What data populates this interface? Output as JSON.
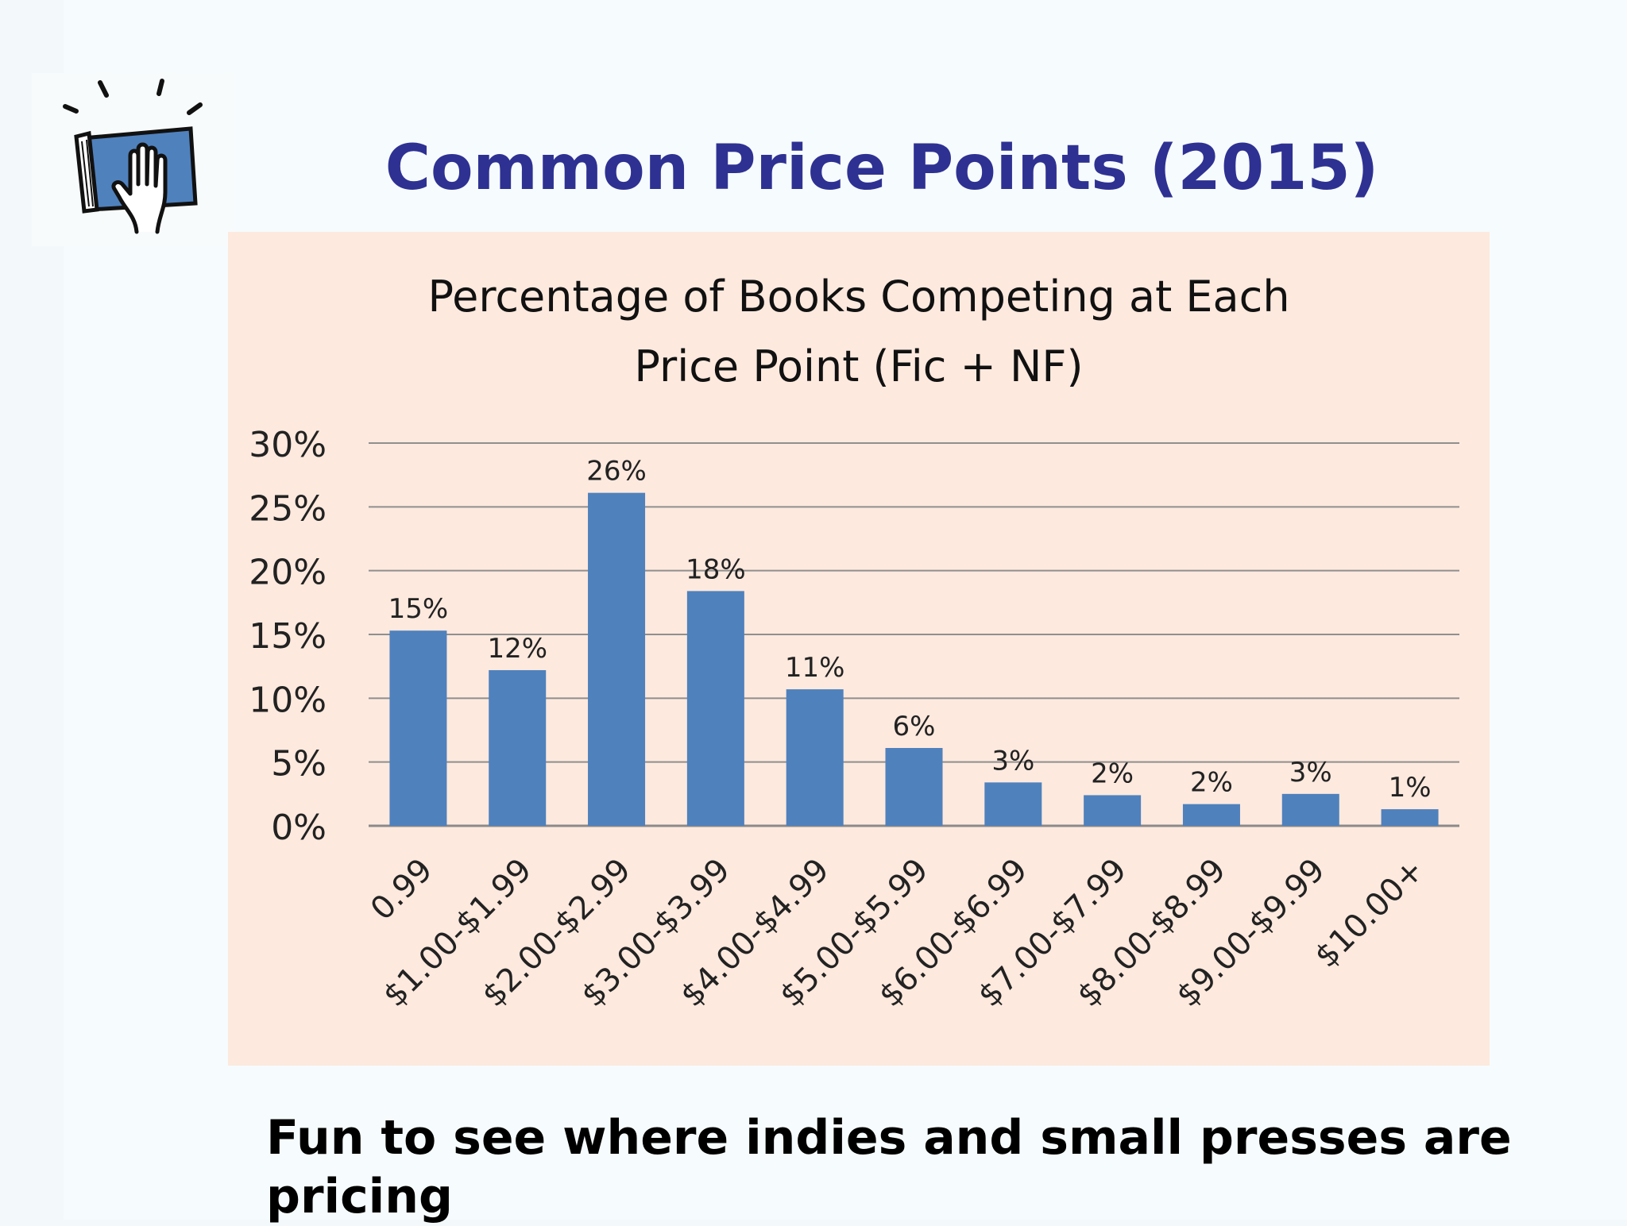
{
  "slide": {
    "title": "Common Price Points (2015)",
    "caption": "Fun to see where indies and small presses are pricing",
    "title_color": "#2e3192"
  },
  "logo": {
    "icon": "book-hand-icon"
  },
  "chart_data": {
    "type": "bar",
    "title_line1": "Percentage of Books Competing at Each",
    "title_line2": "Price Point (Fic + NF)",
    "categories": [
      "0.99",
      "$1.00-$1.99",
      "$2.00-$2.99",
      "$3.00-$3.99",
      "$4.00-$4.99",
      "$5.00-$5.99",
      "$6.00-$6.99",
      "$7.00-$7.99",
      "$8.00-$8.99",
      "$9.00-$9.99",
      "$10.00+"
    ],
    "values": [
      15.3,
      12.2,
      26.1,
      18.4,
      10.7,
      6.1,
      3.4,
      2.4,
      1.7,
      2.5,
      1.3
    ],
    "data_labels": [
      "15%",
      "12%",
      "26%",
      "18%",
      "11%",
      "6%",
      "3%",
      "2%",
      "2%",
      "3%",
      "1%"
    ],
    "y_ticks": [
      0,
      5,
      10,
      15,
      20,
      25,
      30
    ],
    "y_tick_labels": [
      "0%",
      "5%",
      "10%",
      "15%",
      "20%",
      "25%",
      "30%"
    ],
    "ylim": [
      0,
      30
    ],
    "xlabel": "",
    "ylabel": "",
    "grid": true,
    "legend": "none",
    "bar_color": "#4f81bd",
    "background_color": "#fde9de"
  }
}
